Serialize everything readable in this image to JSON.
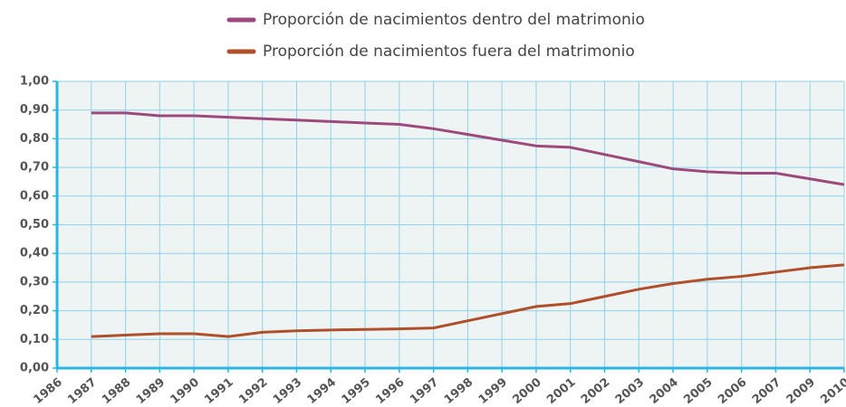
{
  "chart_data": {
    "type": "line",
    "categories": [
      "1986",
      "1987",
      "1988",
      "1989",
      "1990",
      "1991",
      "1992",
      "1993",
      "1994",
      "1995",
      "1996",
      "1997",
      "1998",
      "1999",
      "2000",
      "2001",
      "2002",
      "2003",
      "2004",
      "2005",
      "2006",
      "2007",
      "2009",
      "2010"
    ],
    "series": [
      {
        "name": "Proporción de nacimientos dentro del matrimonio",
        "color": "#9c4a7c",
        "values": [
          null,
          0.89,
          0.89,
          0.88,
          0.88,
          0.875,
          0.87,
          0.865,
          0.86,
          0.855,
          0.85,
          0.835,
          0.815,
          0.795,
          0.775,
          0.77,
          0.745,
          0.72,
          0.695,
          0.685,
          0.68,
          0.68,
          0.66,
          0.64
        ]
      },
      {
        "name": "Proporción de nacimientos fuera del matrimonio",
        "color": "#b0502b",
        "values": [
          null,
          0.11,
          0.115,
          0.12,
          0.12,
          0.11,
          0.125,
          0.13,
          0.133,
          0.135,
          0.137,
          0.14,
          0.165,
          0.19,
          0.215,
          0.225,
          0.25,
          0.275,
          0.295,
          0.31,
          0.32,
          0.335,
          0.35,
          0.36
        ]
      }
    ],
    "ylim": [
      0,
      1
    ],
    "yticks": [
      {
        "value": 0,
        "label": "0,00"
      },
      {
        "value": 0.1,
        "label": "0,10"
      },
      {
        "value": 0.2,
        "label": "0,20"
      },
      {
        "value": 0.3,
        "label": "0,30"
      },
      {
        "value": 0.4,
        "label": "0,40"
      },
      {
        "value": 0.5,
        "label": "0,50"
      },
      {
        "value": 0.6,
        "label": "0,60"
      },
      {
        "value": 0.7,
        "label": "0,70"
      },
      {
        "value": 0.8,
        "label": "0,80"
      },
      {
        "value": 0.9,
        "label": "0,90"
      },
      {
        "value": 1,
        "label": "1,00"
      }
    ],
    "grid": true
  }
}
